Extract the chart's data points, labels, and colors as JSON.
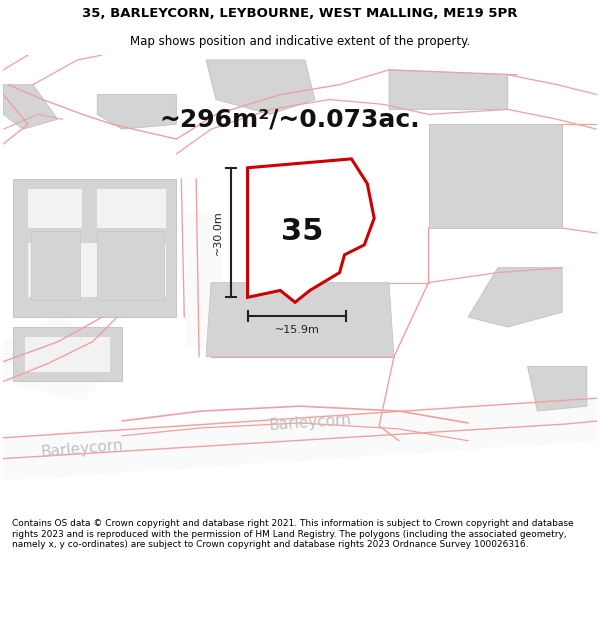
{
  "title_line1": "35, BARLEYCORN, LEYBOURNE, WEST MALLING, ME19 5PR",
  "title_line2": "Map shows position and indicative extent of the property.",
  "area_text": "~296m²/~0.073ac.",
  "label_35": "35",
  "dim_vertical": "~30.0m",
  "dim_horizontal": "~15.9m",
  "footer_text": "Contains OS data © Crown copyright and database right 2021. This information is subject to Crown copyright and database rights 2023 and is reproduced with the permission of HM Land Registry. The polygons (including the associated geometry, namely x, y co-ordinates) are subject to Crown copyright and database rights 2023 Ordnance Survey 100026316.",
  "bg_color": "#f2f2f2",
  "building_gray": "#d4d4d4",
  "building_edge": "#c0c0c0",
  "road_bg": "#f9f9f9",
  "road_line": "#f0a0a0",
  "plot_fill": "#ffffff",
  "plot_edge": "#cc0000",
  "label_color": "#cccccc",
  "dim_color": "#222222",
  "title_fontsize": 9.5,
  "subtitle_fontsize": 8.5,
  "area_fontsize": 18,
  "label35_fontsize": 22,
  "dim_fontsize": 8,
  "road_label_fontsize": 11,
  "footer_fontsize": 6.5
}
